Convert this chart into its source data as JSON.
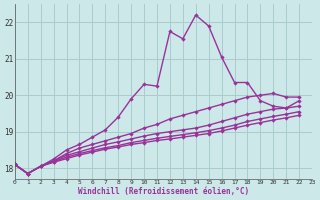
{
  "xlabel": "Windchill (Refroidissement éolien,°C)",
  "bg_color": "#cce8e8",
  "grid_color": "#aacccc",
  "line_color": "#993399",
  "xmin": 0,
  "xmax": 23,
  "ymin": 17.7,
  "ymax": 22.5,
  "yticks": [
    18,
    19,
    20,
    21,
    22
  ],
  "xticks": [
    0,
    1,
    2,
    3,
    4,
    5,
    6,
    7,
    8,
    9,
    10,
    11,
    12,
    13,
    14,
    15,
    16,
    17,
    18,
    19,
    20,
    21,
    22,
    23
  ],
  "series": [
    {
      "x": [
        0,
        1,
        2,
        3,
        4,
        5,
        6,
        7,
        8,
        9,
        10,
        11,
        12,
        13,
        14,
        15,
        16,
        17,
        18,
        19,
        20,
        21,
        22
      ],
      "y": [
        18.1,
        17.85,
        18.05,
        18.25,
        18.5,
        18.65,
        18.85,
        19.05,
        19.4,
        19.9,
        20.3,
        20.25,
        21.75,
        21.55,
        22.2,
        21.9,
        21.05,
        20.35,
        20.35,
        19.85,
        19.7,
        19.65,
        19.85
      ]
    },
    {
      "x": [
        0,
        1,
        2,
        3,
        4,
        5,
        6,
        7,
        8,
        9,
        10,
        11,
        12,
        13,
        14,
        15,
        16,
        17,
        18,
        19,
        20,
        21,
        22
      ],
      "y": [
        18.1,
        17.85,
        18.05,
        18.2,
        18.4,
        18.55,
        18.65,
        18.75,
        18.85,
        18.95,
        19.1,
        19.2,
        19.35,
        19.45,
        19.55,
        19.65,
        19.75,
        19.85,
        19.95,
        20.0,
        20.05,
        19.95,
        19.95
      ]
    },
    {
      "x": [
        0,
        1,
        2,
        3,
        4,
        5,
        6,
        7,
        8,
        9,
        10,
        11,
        12,
        13,
        14,
        15,
        16,
        17,
        18,
        19,
        20,
        21,
        22
      ],
      "y": [
        18.1,
        17.85,
        18.05,
        18.2,
        18.35,
        18.45,
        18.55,
        18.65,
        18.72,
        18.8,
        18.88,
        18.95,
        19.0,
        19.05,
        19.1,
        19.18,
        19.28,
        19.38,
        19.48,
        19.55,
        19.62,
        19.65,
        19.7
      ]
    },
    {
      "x": [
        0,
        1,
        2,
        3,
        4,
        5,
        6,
        7,
        8,
        9,
        10,
        11,
        12,
        13,
        14,
        15,
        16,
        17,
        18,
        19,
        20,
        21,
        22
      ],
      "y": [
        18.1,
        17.85,
        18.05,
        18.18,
        18.3,
        18.4,
        18.48,
        18.56,
        18.62,
        18.7,
        18.76,
        18.82,
        18.87,
        18.92,
        18.97,
        19.03,
        19.1,
        19.18,
        19.28,
        19.35,
        19.42,
        19.48,
        19.55
      ]
    },
    {
      "x": [
        0,
        1,
        2,
        3,
        4,
        5,
        6,
        7,
        8,
        9,
        10,
        11,
        12,
        13,
        14,
        15,
        16,
        17,
        18,
        19,
        20,
        21,
        22
      ],
      "y": [
        18.1,
        17.85,
        18.05,
        18.16,
        18.26,
        18.36,
        18.44,
        18.52,
        18.58,
        18.65,
        18.7,
        18.76,
        18.8,
        18.85,
        18.9,
        18.95,
        19.02,
        19.1,
        19.18,
        19.25,
        19.32,
        19.38,
        19.45
      ]
    }
  ]
}
